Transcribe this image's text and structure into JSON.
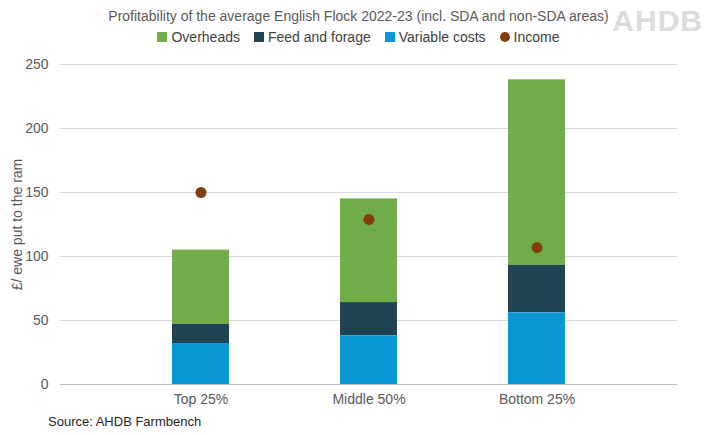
{
  "chart_data": {
    "type": "bar",
    "stacked": true,
    "title": "Profitability of the average English Flock 2022-23 (incl. SDA and non-SDA areas)",
    "logo": "AHDB",
    "caption": "Source: AHDB Farmbench",
    "y_label": "£/ ewe put to the ram",
    "categories": [
      "Top 25%",
      "Middle 50%",
      "Bottom 25%"
    ],
    "series": [
      {
        "name": "Overheads",
        "color": "#70AD47",
        "values": [
          58,
          81,
          145
        ]
      },
      {
        "name": "Feed and forage",
        "color": "#1F4352",
        "values": [
          15,
          26,
          37
        ]
      },
      {
        "name": "Variable costs",
        "color": "#0A95D5",
        "values": [
          32,
          38,
          56
        ]
      },
      {
        "name": "Income",
        "color": "#843C0C",
        "type": "dot",
        "marker": "circle",
        "values": [
          150,
          129,
          107
        ]
      }
    ],
    "ylim": [
      0,
      250
    ],
    "yticks": [
      0,
      50,
      100,
      150,
      200,
      250
    ],
    "grid": true,
    "legend": "top"
  }
}
